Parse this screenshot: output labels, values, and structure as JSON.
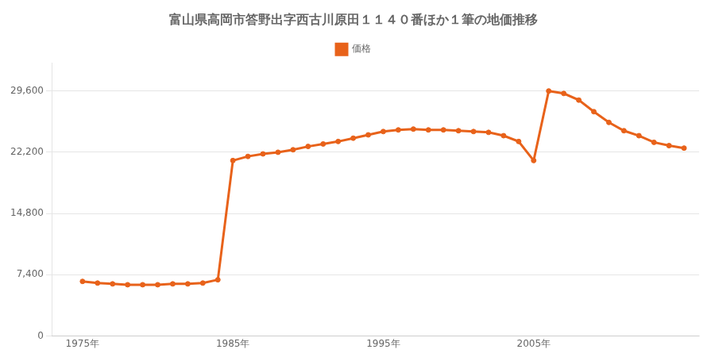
{
  "chart_data": {
    "type": "line",
    "title": "富山県高岡市答野出字西古川原田１１４０番ほか１筆の地価推移",
    "x": [
      1975,
      1976,
      1977,
      1978,
      1979,
      1980,
      1981,
      1982,
      1983,
      1984,
      1985,
      1986,
      1987,
      1988,
      1989,
      1990,
      1991,
      1992,
      1993,
      1994,
      1995,
      1996,
      1997,
      1998,
      1999,
      2000,
      2001,
      2002,
      2003,
      2004,
      2005,
      2006,
      2007,
      2008,
      2009,
      2010,
      2011,
      2012,
      2013,
      2014,
      2015
    ],
    "series": [
      {
        "name": "価格",
        "color": "#e8621a",
        "marker": "circle",
        "values": [
          6600,
          6400,
          6300,
          6200,
          6200,
          6200,
          6300,
          6300,
          6400,
          6800,
          21200,
          21700,
          22000,
          22200,
          22500,
          22900,
          23200,
          23500,
          23900,
          24300,
          24700,
          24900,
          25000,
          24900,
          24900,
          24800,
          24700,
          24600,
          24200,
          23500,
          21200,
          29600,
          29300,
          28500,
          27100,
          25800,
          24800,
          24200,
          23400,
          23000,
          22700
        ]
      }
    ],
    "xlim": [
      1973,
      2016
    ],
    "xticks": [
      {
        "value": 1975,
        "label": "1975年"
      },
      {
        "value": 1985,
        "label": "1985年"
      },
      {
        "value": 1995,
        "label": "1995年"
      },
      {
        "value": 2005,
        "label": "2005年"
      }
    ],
    "ylim": [
      0,
      33000
    ],
    "yticks": [
      0,
      {
        "value": 7400,
        "label": "7,400"
      },
      {
        "value": 14800,
        "label": "14,800"
      },
      {
        "value": 22200,
        "label": "22,200"
      },
      {
        "value": 29600,
        "label": "29,600"
      }
    ],
    "grid": "y",
    "legend": "top"
  }
}
